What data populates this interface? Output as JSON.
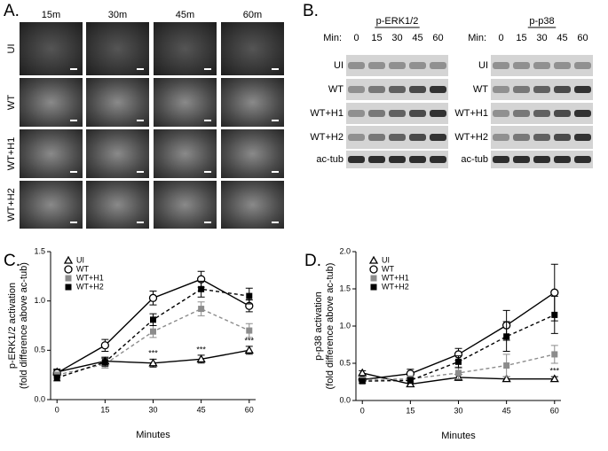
{
  "panel_labels": [
    "A.",
    "B.",
    "C.",
    "D."
  ],
  "micrographs": {
    "columns": [
      "15m",
      "30m",
      "45m",
      "60m"
    ],
    "rows": [
      "UI",
      "WT",
      "WT+H1",
      "WT+H2"
    ]
  },
  "blots": {
    "min_label": "Min:",
    "minutes": [
      "0",
      "15",
      "30",
      "45",
      "60"
    ],
    "panels": [
      {
        "title": "p-ERK1/2",
        "rows": [
          "UI",
          "WT",
          "WT+H1",
          "WT+H2",
          "ac-tub"
        ]
      },
      {
        "title": "p-p38",
        "rows": [
          "UI",
          "WT",
          "WT+H1",
          "WT+H2",
          "ac-tub"
        ]
      }
    ]
  },
  "chart_data": [
    {
      "type": "line",
      "y_label": "p-ERK1/2 activation",
      "y_label_2": "(fold difference above ac-tub)",
      "x_label": "Minutes",
      "x": [
        0,
        15,
        30,
        45,
        60
      ],
      "xlim": [
        -2,
        62
      ],
      "xticks": [
        0,
        15,
        30,
        45,
        60
      ],
      "ylim": [
        0,
        1.5
      ],
      "yticks": [
        {
          "value": 0,
          "label": "0.0"
        },
        {
          "value": 0.5,
          "label": "0.5"
        },
        {
          "value": 1,
          "label": "1.0"
        },
        {
          "value": 1.5,
          "label": "1.5"
        }
      ],
      "legend": "upper left",
      "series": [
        {
          "name": "UI",
          "color": "#000000",
          "marker": "triangle-open",
          "dash": false,
          "values": [
            0.28,
            0.39,
            0.37,
            0.41,
            0.5
          ],
          "errors": [
            0.03,
            0.04,
            0.04,
            0.04,
            0.04
          ]
        },
        {
          "name": "WT",
          "color": "#000000",
          "marker": "circle-open",
          "dash": false,
          "values": [
            0.27,
            0.55,
            1.03,
            1.22,
            0.95
          ],
          "errors": [
            0.03,
            0.06,
            0.07,
            0.08,
            0.06
          ]
        },
        {
          "name": "WT+H1",
          "color": "#8c8c8c",
          "marker": "square",
          "dash": true,
          "values": [
            0.25,
            0.36,
            0.69,
            0.92,
            0.7
          ],
          "errors": [
            0.03,
            0.04,
            0.06,
            0.07,
            0.07
          ]
        },
        {
          "name": "WT+H2",
          "color": "#000000",
          "marker": "square",
          "dash": true,
          "values": [
            0.22,
            0.38,
            0.81,
            1.12,
            1.05
          ],
          "errors": [
            0.03,
            0.04,
            0.06,
            0.08,
            0.08
          ]
        }
      ],
      "annotations": [
        {
          "x": 30,
          "text": "***"
        },
        {
          "x": 45,
          "text": "***"
        },
        {
          "x": 60,
          "text": "***"
        }
      ]
    },
    {
      "type": "line",
      "y_label": "p-p38 activation",
      "y_label_2": "(fold difference above ac-tub)",
      "x_label": "Minutes",
      "x": [
        0,
        15,
        30,
        45,
        60
      ],
      "xlim": [
        -2,
        62
      ],
      "xticks": [
        0,
        15,
        30,
        45,
        60
      ],
      "ylim": [
        0,
        2
      ],
      "yticks": [
        {
          "value": 0,
          "label": "0.0"
        },
        {
          "value": 0.5,
          "label": "0.5"
        },
        {
          "value": 1,
          "label": "1.0"
        },
        {
          "value": 1.5,
          "label": "1.5"
        },
        {
          "value": 2,
          "label": "2.0"
        }
      ],
      "legend": "upper left",
      "series": [
        {
          "name": "UI",
          "color": "#000000",
          "marker": "triangle-open",
          "dash": false,
          "values": [
            0.37,
            0.22,
            0.31,
            0.29,
            0.29
          ],
          "errors": [
            0.03,
            0.03,
            0.04,
            0.03,
            0.03
          ]
        },
        {
          "name": "WT",
          "color": "#000000",
          "marker": "circle-open",
          "dash": false,
          "values": [
            0.28,
            0.36,
            0.62,
            1.01,
            1.45
          ],
          "errors": [
            0.03,
            0.06,
            0.08,
            0.2,
            0.38
          ]
        },
        {
          "name": "WT+H1",
          "color": "#8c8c8c",
          "marker": "square",
          "dash": true,
          "values": [
            0.28,
            0.29,
            0.37,
            0.47,
            0.62
          ],
          "errors": [
            0.03,
            0.04,
            0.08,
            0.15,
            0.12
          ]
        },
        {
          "name": "WT+H2",
          "color": "#000000",
          "marker": "square",
          "dash": true,
          "values": [
            0.26,
            0.27,
            0.52,
            0.86,
            1.15
          ],
          "errors": [
            0.03,
            0.04,
            0.08,
            0.2,
            0.25
          ]
        }
      ],
      "annotations": [
        {
          "x": 60,
          "text": "***"
        }
      ]
    }
  ]
}
